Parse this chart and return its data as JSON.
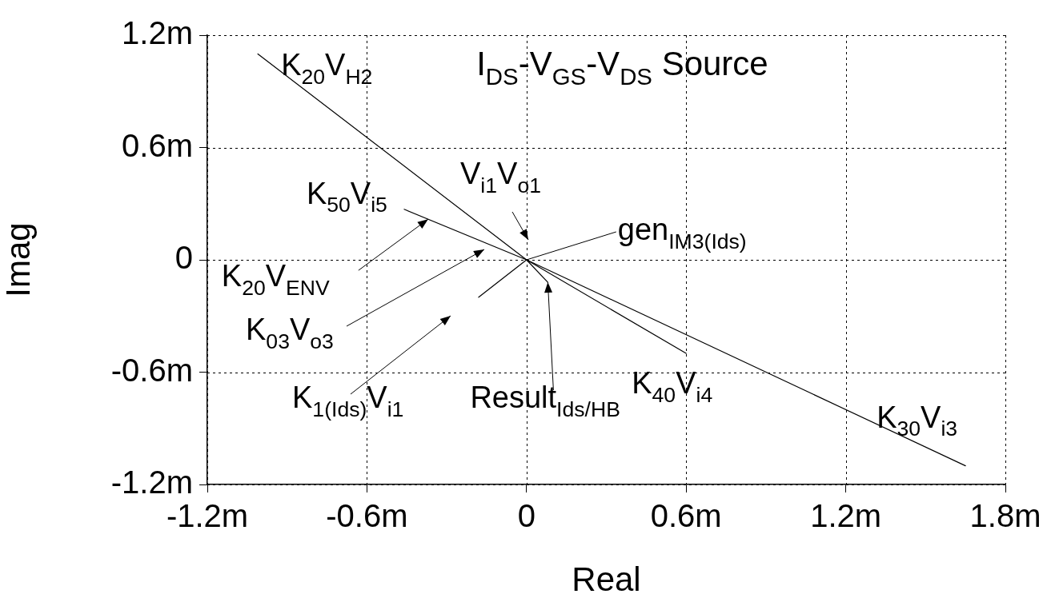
{
  "chart_data": {
    "type": "line",
    "title": "I$_{DS}$-V$_{GS}$-V$_{DS}$ Source",
    "xlabel": "Real",
    "ylabel": "Imag",
    "xlim": [
      -1.2,
      1.8
    ],
    "ylim": [
      -1.2,
      1.2
    ],
    "xticks": [
      {
        "value": -1.2,
        "label": "-1.2m"
      },
      {
        "value": -0.6,
        "label": "-0.6m"
      },
      0,
      {
        "value": 0.6,
        "label": "0.6m"
      },
      {
        "value": 1.2,
        "label": "1.2m"
      },
      {
        "value": 1.8,
        "label": "1.8m"
      }
    ],
    "yticks": [
      {
        "value": -1.2,
        "label": "-1.2m"
      },
      {
        "value": -0.6,
        "label": "-0.6m"
      },
      0,
      {
        "value": 0.6,
        "label": "0.6m"
      },
      {
        "value": 1.2,
        "label": "1.2m"
      }
    ],
    "grid": true,
    "legend": false,
    "marker": "none",
    "line_style": "solid",
    "series": [
      {
        "color": "#000000",
        "x": [
          -1.01,
          0,
          1.65
        ],
        "values": [
          1.1,
          0,
          -1.1
        ]
      },
      {
        "color": "#000000",
        "x": [
          -0.46,
          0,
          0.6
        ],
        "values": [
          0.27,
          0,
          -0.5
        ]
      },
      {
        "color": "#000000",
        "x": [
          -0.18,
          0,
          0.08
        ],
        "values": [
          -0.2,
          0,
          -0.12
        ]
      }
    ],
    "annotations": [
      {
        "text": "K$_{20}$V$_{H2}$",
        "x": -1.01,
        "y": 1.1
      },
      "V$_{i1}$V$_{o1}$",
      {
        "text": "K$_{50}$V$_{i5}$",
        "x": -0.46,
        "y": 0.27
      },
      {
        "text": "gen$_{IM3(Ids)}$",
        "x": 0,
        "y": 0
      },
      {
        "text": "K$_{20}$V$_{ENV}$",
        "x": -0.37,
        "y": 0.217
      },
      "K$_{03}$V$_{o3}$",
      "K$_{1(Ids)}$V$_{i1}$",
      {
        "text": "Result$_{Ids/HB}$",
        "x": 0.08,
        "y": -0.12
      },
      {
        "text": "K$_{40}$V$_{i4}$",
        "x": 0.6,
        "y": -0.5
      },
      {
        "text": "K$_{30}$V$_{i3}$",
        "x": 1.65,
        "y": -1.1
      }
    ]
  }
}
